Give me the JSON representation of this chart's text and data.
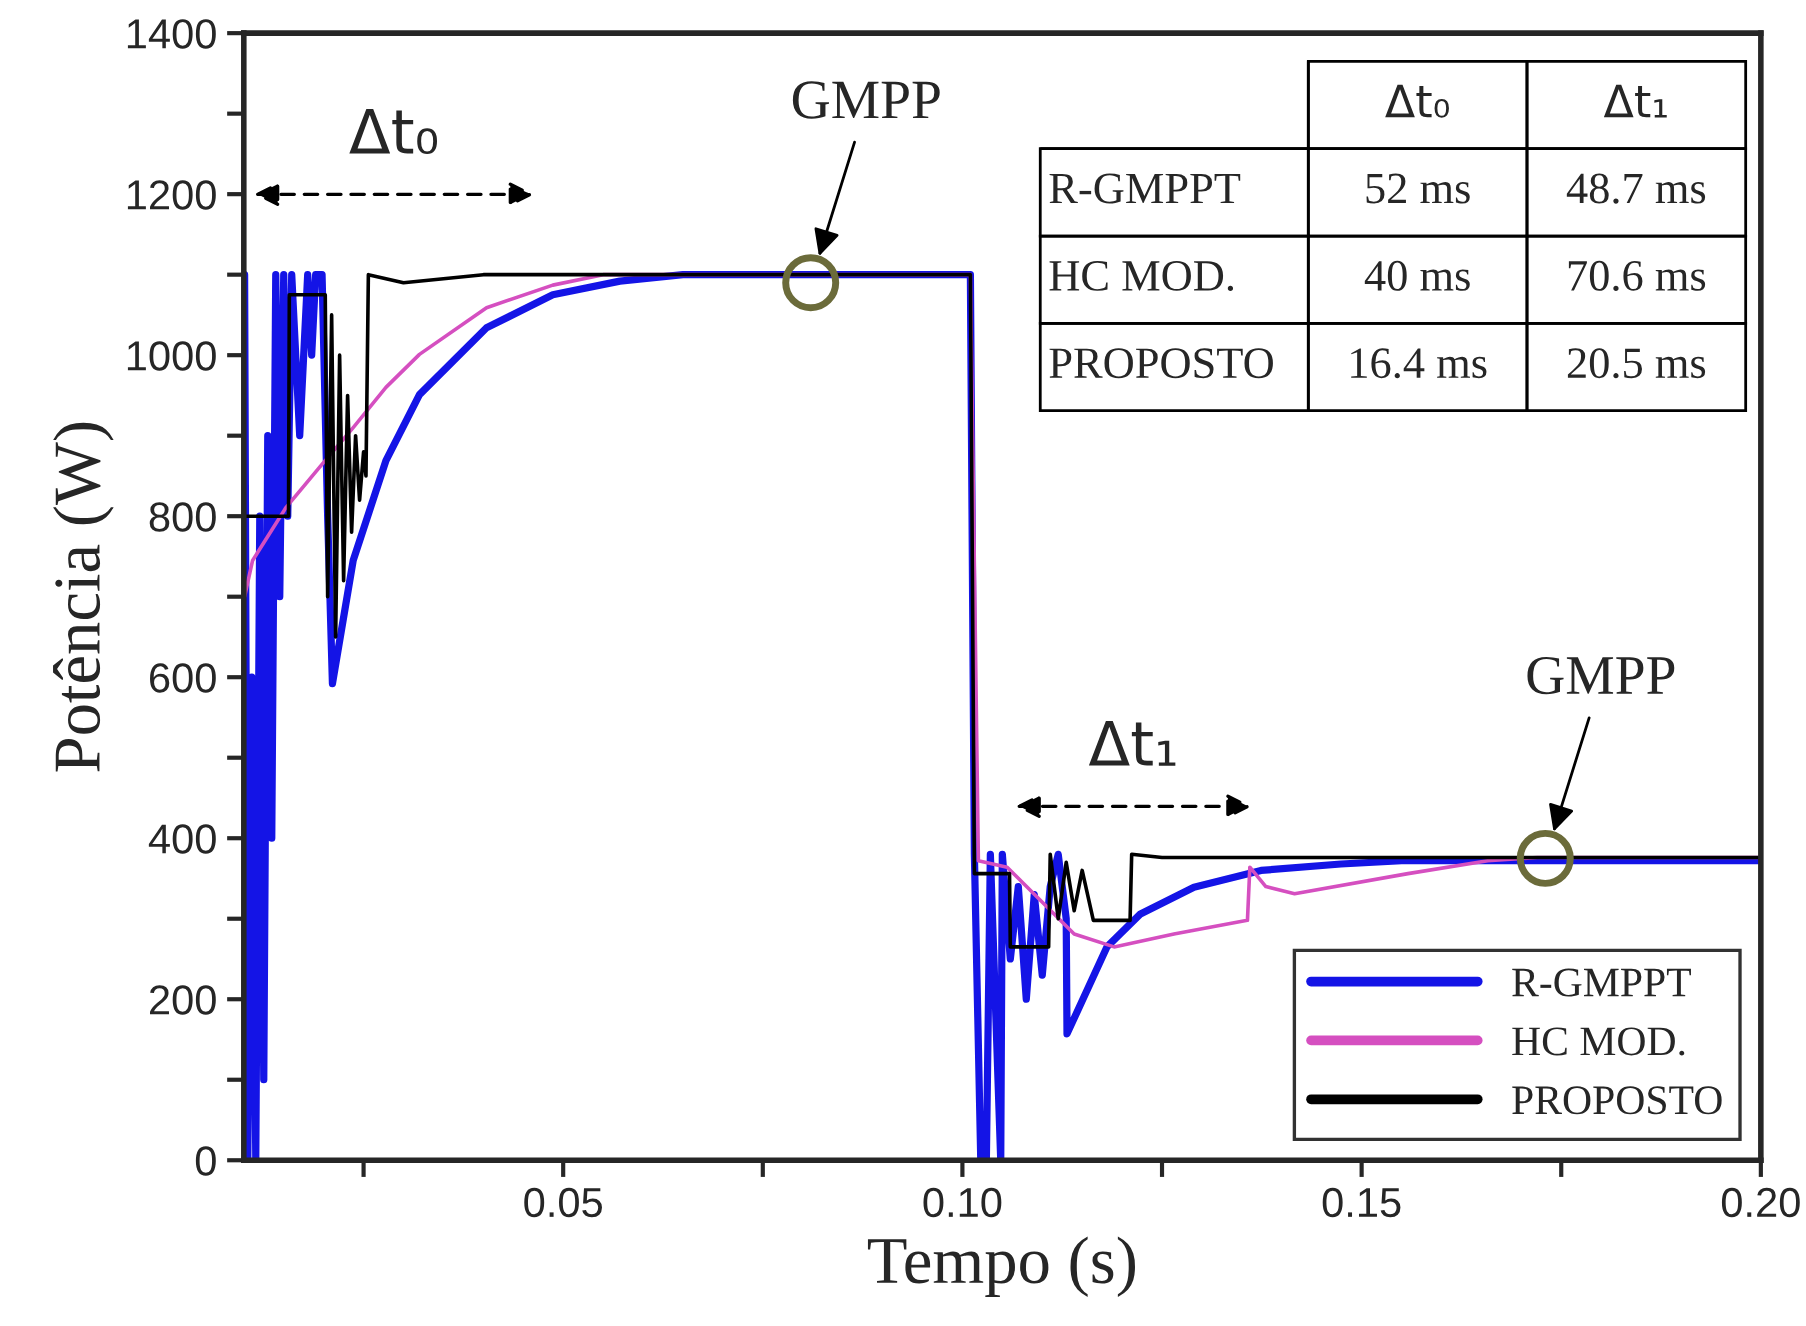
{
  "chart_data": {
    "type": "line",
    "xlabel": "Tempo (s)",
    "ylabel": "Potência (W)",
    "xlim": [
      0.01,
      0.2
    ],
    "ylim": [
      0,
      1400
    ],
    "xticks": [
      {
        "value": 0.025,
        "label": null
      },
      0.05,
      {
        "value": 0.075,
        "label": null
      },
      {
        "value": 0.1,
        "label": "0.10"
      },
      {
        "value": 0.125,
        "label": null
      },
      0.15,
      {
        "value": 0.175,
        "label": null
      },
      {
        "value": 0.2,
        "label": "0.20"
      }
    ],
    "yticks": [
      0,
      {
        "value": 100,
        "label": null
      },
      200,
      {
        "value": 300,
        "label": null
      },
      400,
      {
        "value": 500,
        "label": null
      },
      600,
      {
        "value": 700,
        "label": null
      },
      800,
      {
        "value": 900,
        "label": null
      },
      1000,
      {
        "value": 1100,
        "label": null
      },
      1200,
      {
        "value": 1300,
        "label": null
      },
      1400
    ],
    "grid": false,
    "legend": "bottom right",
    "marker": "none",
    "line_style": "solid",
    "series": [
      {
        "name": "R-GMPPT",
        "color": "#1414e6",
        "x": [
          0.0101,
          0.0105,
          0.011,
          0.0115,
          0.012,
          0.0125,
          0.013,
          0.0135,
          0.014,
          0.0145,
          0.015,
          0.0155,
          0.016,
          0.017,
          0.018,
          0.0185,
          0.019,
          0.0198,
          0.0205,
          0.0211,
          0.0237,
          0.0278,
          0.032,
          0.0404,
          0.0487,
          0.0571,
          0.065,
          0.101,
          0.1015,
          0.1023,
          0.103,
          0.1035,
          0.1048,
          0.105,
          0.106,
          0.107,
          0.108,
          0.109,
          0.11,
          0.111,
          0.112,
          0.113,
          0.1131,
          0.1181,
          0.1223,
          0.129,
          0.1374,
          0.1474,
          0.155,
          0.2
        ],
        "values": [
          1100,
          0,
          600,
          0,
          800,
          100,
          900,
          400,
          1100,
          700,
          1100,
          800,
          1100,
          900,
          1100,
          1000,
          1100,
          1100,
          800,
          592,
          745,
          869,
          951,
          1034,
          1075,
          1092,
          1100,
          1100,
          380,
          0,
          0,
          380,
          0,
          380,
          250,
          340,
          200,
          330,
          230,
          340,
          380,
          300,
          157,
          265,
          306,
          339,
          360,
          368,
          372,
          372
        ]
      },
      {
        "name": "HC MOD.",
        "color": "#d54fc0",
        "x": [
          0.0101,
          0.0111,
          0.0153,
          0.0195,
          0.0237,
          0.0278,
          0.032,
          0.0404,
          0.0487,
          0.055,
          0.101,
          0.102,
          0.1056,
          0.114,
          0.119,
          0.1265,
          0.1357,
          0.136,
          0.138,
          0.1416,
          0.1558,
          0.1658,
          0.172,
          0.2
        ],
        "values": [
          700,
          745,
          811,
          861,
          910,
          960,
          1001,
          1059,
          1087,
          1100,
          1100,
          372,
          364,
          281,
          265,
          281,
          298,
          364,
          340,
          331,
          356,
          372,
          376,
          376
        ]
      },
      {
        "name": "PROPOSTO",
        "color": "#000000",
        "x": [
          0.0101,
          0.0156,
          0.0157,
          0.0202,
          0.0205,
          0.021,
          0.0215,
          0.022,
          0.0225,
          0.023,
          0.0235,
          0.024,
          0.0245,
          0.025,
          0.0253,
          0.0256,
          0.03,
          0.04,
          0.101,
          0.1015,
          0.1059,
          0.106,
          0.1108,
          0.111,
          0.112,
          0.113,
          0.114,
          0.115,
          0.1164,
          0.121,
          0.1212,
          0.125,
          0.2
        ],
        "values": [
          800,
          800,
          1075,
          1075,
          700,
          1050,
          650,
          1000,
          720,
          950,
          780,
          900,
          820,
          880,
          850,
          1100,
          1090,
          1100,
          1100,
          356,
          356,
          265,
          265,
          380,
          300,
          370,
          310,
          360,
          298,
          298,
          380,
          376,
          376
        ]
      }
    ],
    "annotations": [
      "Δt₀",
      "Δt₁",
      {
        "text": "GMPP",
        "x": 0.081,
        "y": 1090
      },
      {
        "text": "GMPP",
        "x": 0.173,
        "y": 375
      },
      "Δt₀",
      "Δt₁",
      "R-GMPPT",
      "52 ms",
      "48.7 ms",
      "HC MOD.",
      "40 ms",
      "70.6 ms",
      "PROPOSTO",
      "16.4 ms",
      "20.5 ms"
    ]
  }
}
